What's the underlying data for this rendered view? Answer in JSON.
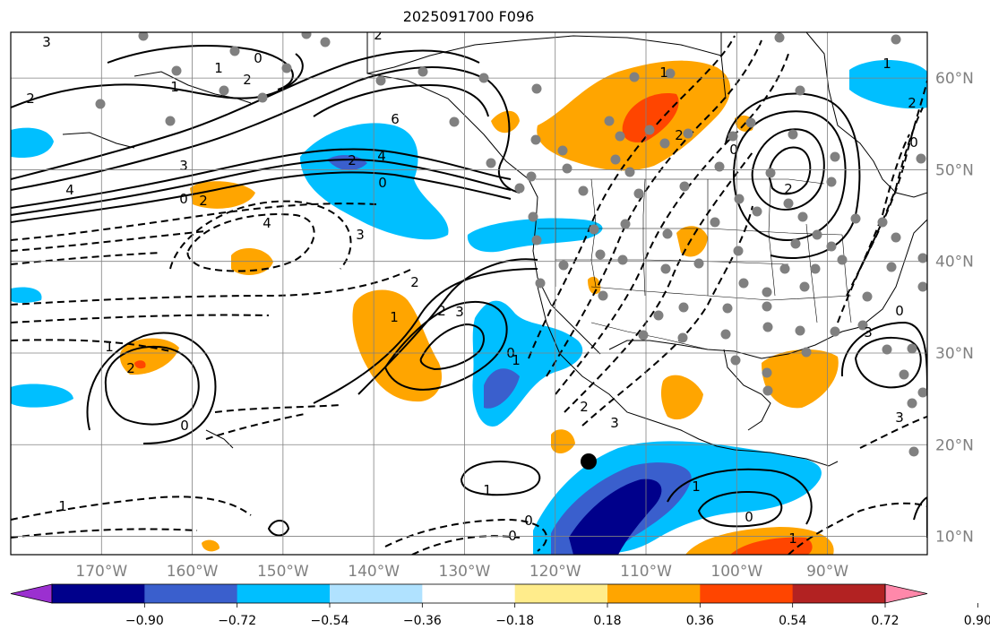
{
  "title": "2025091700 F096",
  "map": {
    "projection": "plate-carree",
    "lon_range": [
      -180,
      -79
    ],
    "lat_range": [
      8,
      65
    ],
    "lon_ticks": [
      "170°W",
      "160°W",
      "150°W",
      "140°W",
      "130°W",
      "120°W",
      "110°W",
      "100°W",
      "90°W"
    ],
    "lat_ticks": [
      "60°N",
      "50°N",
      "40°N",
      "30°N",
      "20°N",
      "10°N"
    ],
    "grid": true
  },
  "colorbar": {
    "ticks": [
      "−0.90",
      "−0.72",
      "−0.54",
      "−0.36",
      "−0.18",
      "0.18",
      "0.36",
      "0.54",
      "0.72",
      "0.90"
    ],
    "colors": [
      "#9b30d0",
      "#00008b",
      "#3a5fcd",
      "#00bfff",
      "#b0e2ff",
      "#ffffff",
      "#ffec8b",
      "#ffa500",
      "#ff4500",
      "#b22222",
      "#ff88aa"
    ],
    "extend": "both"
  },
  "contour_labels": [
    "3",
    "0",
    "1",
    "2",
    "2",
    "1",
    "6",
    "4",
    "2",
    "0",
    "3",
    "4",
    "0",
    "2",
    "4",
    "3",
    "1",
    "2",
    "2",
    "3",
    "0",
    "1",
    "2",
    "3",
    "2",
    "1",
    "0",
    "2",
    "1",
    "2",
    "0",
    "1",
    "0",
    "0",
    "1",
    "0",
    "1",
    "0",
    "2",
    "1",
    "3",
    "3",
    "0",
    "2",
    "1"
  ]
}
